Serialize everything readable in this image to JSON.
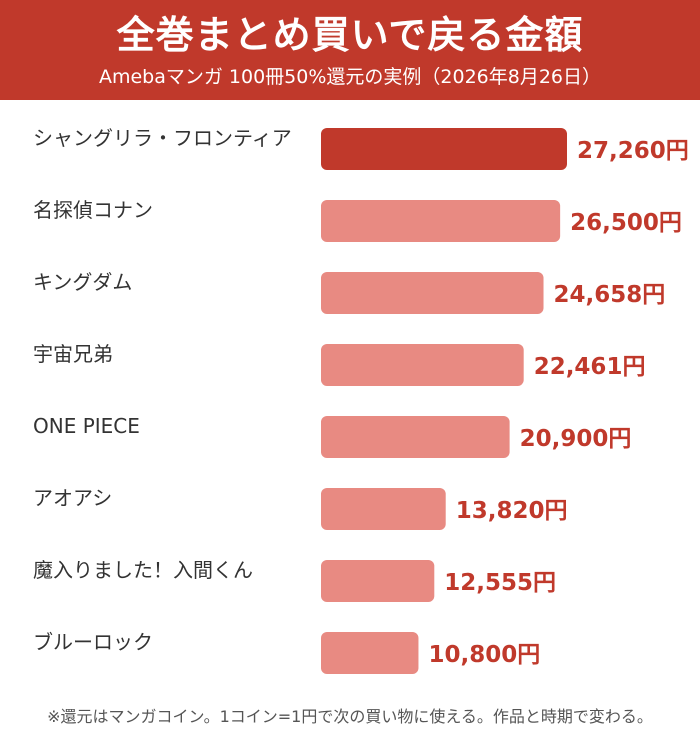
{
  "header": {
    "title": "全巻まとめ買いで戻る金額",
    "subtitle": "Amebaマンガ 100冊50%還元の実例（2026年8月26日）"
  },
  "footnote": "※還元はマンガコイン。1コイン=1円で次の買い物に使える。作品と時期で変わる。",
  "colors": {
    "header_bg": "#c0392b",
    "highlight_bar": "#c0392b",
    "bar": "#e88a82",
    "value_text": "#c0392b"
  },
  "chart_data": {
    "type": "bar",
    "orientation": "horizontal",
    "unit": "円",
    "categories": [
      "シャングリラ・フロンティア",
      "名探偵コナン",
      "キングダム",
      "宇宙兄弟",
      "ONE PIECE",
      "アオアシ",
      "魔入りました！入間くん",
      "ブルーロック"
    ],
    "values": [
      27260,
      26500,
      24658,
      22461,
      20900,
      13820,
      12555,
      10800
    ],
    "value_labels": [
      "27,260円",
      "26,500円",
      "24,658円",
      "22,461円",
      "20,900円",
      "13,820円",
      "12,555円",
      "10,800円"
    ],
    "highlight_index": 0,
    "xlim": [
      0,
      27260
    ],
    "grid": false,
    "legend": "none"
  }
}
